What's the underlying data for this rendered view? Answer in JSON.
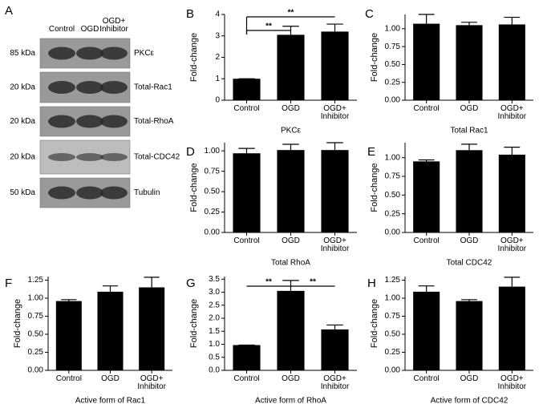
{
  "blot": {
    "panel": "A",
    "columns": [
      "Control",
      "OGD",
      "OGD+ Inhibitor"
    ],
    "rows": [
      {
        "size": "85 kDa",
        "label": "PKCε"
      },
      {
        "size": "20 kDa",
        "label": "Total-Rac1"
      },
      {
        "size": "20 kDa",
        "label": "Total-RhoA"
      },
      {
        "size": "20 kDa",
        "label": "Total-CDC42"
      },
      {
        "size": "50 kDa",
        "label": "Tubulin"
      }
    ]
  },
  "chart_data": [
    {
      "type": "bar",
      "panel": "B",
      "ylabel": "Fold-change",
      "xlabel": "PKCε",
      "categories": [
        "Control",
        "OGD",
        "OGD+ Inhibitor"
      ],
      "values": [
        1.0,
        3.05,
        3.2
      ],
      "errors": [
        0,
        0.4,
        0.35
      ],
      "color": "#000000",
      "ylim": [
        0,
        4
      ],
      "yticks": [
        0,
        1,
        2,
        3,
        4
      ],
      "annotations": [
        "**",
        "**"
      ]
    },
    {
      "type": "bar",
      "panel": "C",
      "ylabel": "Fold-change",
      "xlabel": "Total Rac1",
      "categories": [
        "Control",
        "OGD",
        "OGD+ Inhibitor"
      ],
      "values": [
        1.07,
        1.05,
        1.06
      ],
      "errors": [
        0.13,
        0.04,
        0.1
      ],
      "color": "#000000",
      "ylim": [
        0,
        1.2
      ],
      "yticks": [
        {
          "value": 0,
          "label": "0.00"
        },
        0.25,
        {
          "value": 0.5,
          "label": "0.50"
        },
        0.75,
        {
          "value": 1,
          "label": "1.00"
        }
      ]
    },
    {
      "type": "bar",
      "panel": "D",
      "ylabel": "Fold-change",
      "xlabel": "Total RhoA",
      "categories": [
        "Control",
        "OGD",
        "OGD+ Inhibitor"
      ],
      "values": [
        0.97,
        1.01,
        1.01
      ],
      "errors": [
        0.06,
        0.07,
        0.09
      ],
      "color": "#000000",
      "ylim": [
        0,
        1.1
      ],
      "yticks": [
        {
          "value": 0,
          "label": "0.00"
        },
        0.25,
        {
          "value": 0.5,
          "label": "0.50"
        },
        0.75,
        {
          "value": 1,
          "label": "1.00"
        }
      ]
    },
    {
      "type": "bar",
      "panel": "E",
      "ylabel": "Fold-change",
      "xlabel": "Total CDC42",
      "categories": [
        "Control",
        "OGD",
        "OGD+ Inhibitor"
      ],
      "values": [
        0.95,
        1.1,
        1.04
      ],
      "errors": [
        0.02,
        0.08,
        0.1
      ],
      "color": "#000000",
      "ylim": [
        0,
        1.2
      ],
      "yticks": [
        {
          "value": 0,
          "label": "0.00"
        },
        0.25,
        {
          "value": 0.5,
          "label": "0.50"
        },
        0.75,
        {
          "value": 1,
          "label": "1.00"
        }
      ]
    },
    {
      "type": "bar",
      "panel": "F",
      "ylabel": "Fold-change",
      "xlabel": "Active form of Rac1",
      "categories": [
        "Control",
        "OGD",
        "OGD+ Inhibitor"
      ],
      "values": [
        0.96,
        1.09,
        1.15
      ],
      "errors": [
        0.02,
        0.08,
        0.14
      ],
      "color": "#000000",
      "ylim": [
        0,
        1.3
      ],
      "yticks": [
        {
          "value": 0,
          "label": "0.00"
        },
        0.25,
        {
          "value": 0.5,
          "label": "0.50"
        },
        0.75,
        {
          "value": 1,
          "label": "1.00"
        },
        1.25
      ]
    },
    {
      "type": "bar",
      "panel": "G",
      "ylabel": "Fold-change",
      "xlabel": "Active form of RhoA",
      "categories": [
        "Control",
        "OGD",
        "OGD+ Inhibitor"
      ],
      "values": [
        0.97,
        3.05,
        1.57
      ],
      "errors": [
        0,
        0.4,
        0.17
      ],
      "color": "#000000",
      "ylim": [
        0,
        3.6
      ],
      "yticks": [
        {
          "value": 0,
          "label": "0.0"
        },
        0.5,
        {
          "value": 1,
          "label": "1.0"
        },
        1.5,
        {
          "value": 2,
          "label": "2.0"
        },
        2.5,
        {
          "value": 3,
          "label": "3.0"
        },
        3.5
      ],
      "annotations": [
        "**",
        "**"
      ]
    },
    {
      "type": "bar",
      "panel": "H",
      "ylabel": "Fold-change",
      "xlabel": "Active form of CDC42",
      "categories": [
        "Control",
        "OGD",
        "OGD+ Inhibitor"
      ],
      "values": [
        1.09,
        0.96,
        1.16
      ],
      "errors": [
        0.08,
        0.02,
        0.13
      ],
      "color": "#000000",
      "ylim": [
        0,
        1.3
      ],
      "yticks": [
        {
          "value": 0,
          "label": "0.00"
        },
        0.25,
        {
          "value": 0.5,
          "label": "0.50"
        },
        0.75,
        {
          "value": 1,
          "label": "1.00"
        },
        1.25
      ]
    }
  ]
}
